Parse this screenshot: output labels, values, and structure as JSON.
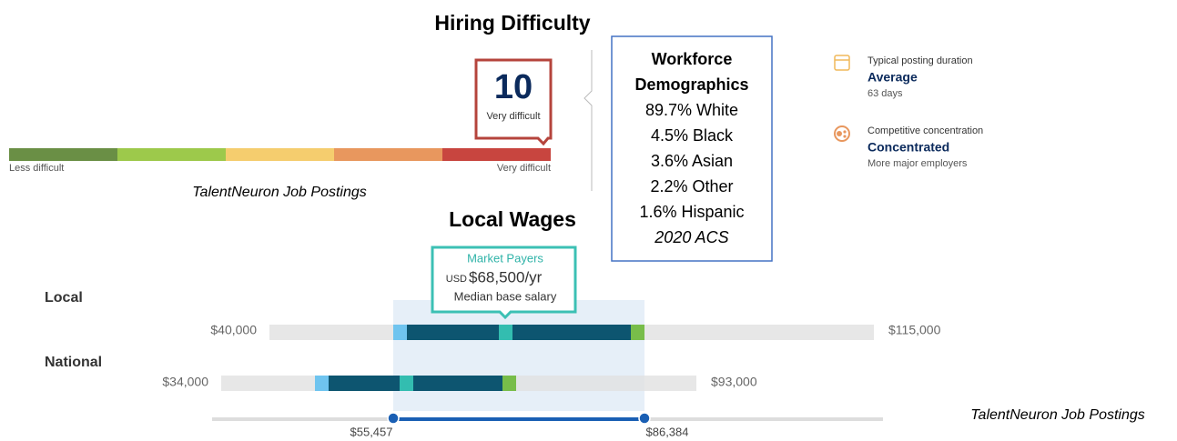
{
  "hiring_difficulty": {
    "title": "Hiring Difficulty",
    "score": "10",
    "score_label": "Very difficult",
    "scale_min_label": "Less difficult",
    "scale_max_label": "Very difficult",
    "source": "TalentNeuron Job Postings"
  },
  "demographics": {
    "title_line1": "Workforce",
    "title_line2": "Demographics",
    "rows": [
      "89.7% White",
      "4.5% Black",
      "3.6% Asian",
      "2.2% Other",
      "1.6% Hispanic"
    ],
    "source": "2020 ACS"
  },
  "metrics": [
    {
      "label": "Typical posting duration",
      "value": "Average",
      "detail": "63 days"
    },
    {
      "label": "Competitive concentration",
      "value": "Concentrated",
      "detail": "More major employers"
    }
  ],
  "local_wages": {
    "title": "Local Wages",
    "callout": {
      "title": "Market Payers",
      "currency": "USD",
      "amount": "$68,500/yr",
      "caption": "Median base salary"
    },
    "local": {
      "label": "Local",
      "min": "$40,000",
      "max": "$115,000"
    },
    "national": {
      "label": "National",
      "min": "$34,000",
      "max": "$93,000"
    },
    "range_low": "$55,457",
    "range_high": "$86,384",
    "source": "TalentNeuron Job Postings"
  }
}
